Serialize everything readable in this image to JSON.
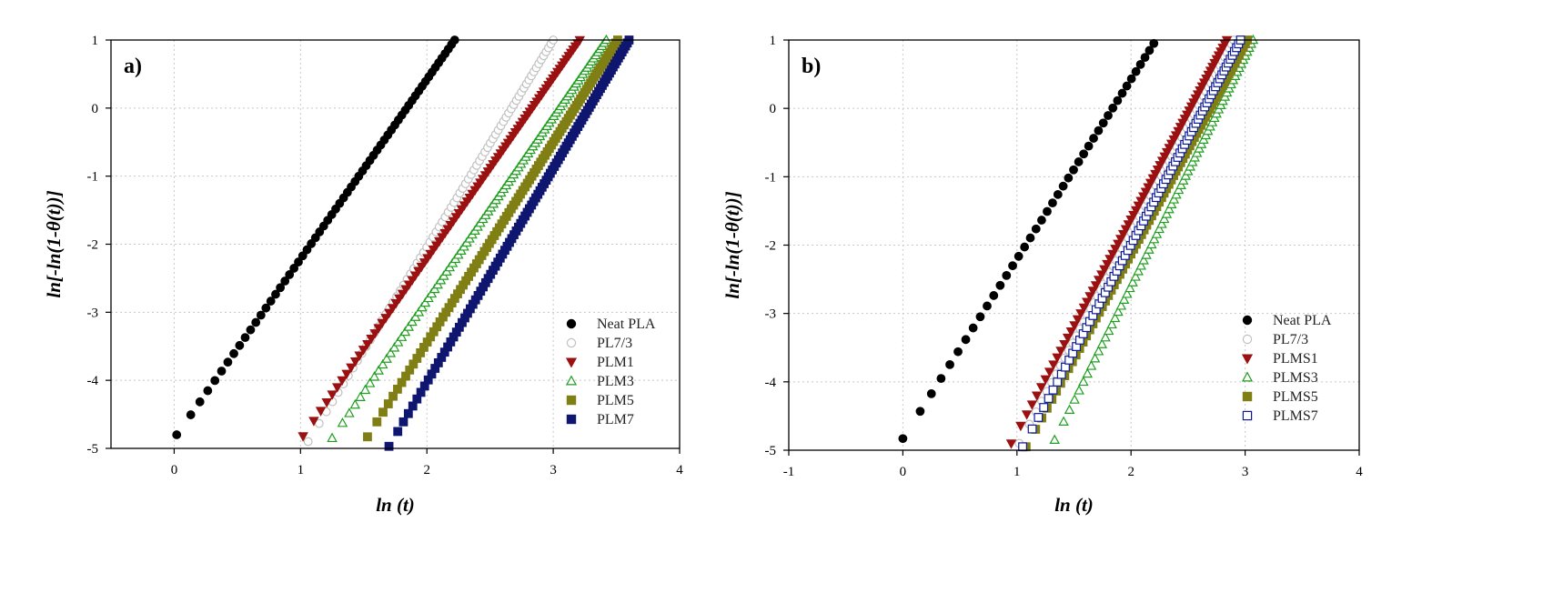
{
  "chart_data": [
    {
      "type": "scatter",
      "panel_label": "a)",
      "xlabel": "ln (t)",
      "ylabel": "ln[-ln(1-θ(t))]",
      "xlim": [
        -0.5,
        4
      ],
      "ylim": [
        -5,
        1
      ],
      "xticks": [
        0,
        1,
        2,
        3,
        4
      ],
      "yticks": [
        -5,
        -4,
        -3,
        -2,
        -1,
        0,
        1
      ],
      "grid": true,
      "legend_position": "bottom-right",
      "series": [
        {
          "name": "Neat PLA",
          "marker": "circle",
          "filled": true,
          "color": "#000000",
          "x_start": 0.02,
          "x_end": 2.22,
          "y_start": -4.8,
          "y_end": 1,
          "count": 64
        },
        {
          "name": "PL7/3",
          "marker": "circle",
          "filled": false,
          "color": "#c0c0c0",
          "x_start": 1.06,
          "x_end": 3.0,
          "y_start": -4.9,
          "y_end": 1,
          "count": 75
        },
        {
          "name": "PLM1",
          "marker": "triangle-down",
          "filled": true,
          "color": "#9b1010",
          "x_start": 1.02,
          "x_end": 3.21,
          "y_start": -4.82,
          "y_end": 1,
          "count": 92
        },
        {
          "name": "PLM3",
          "marker": "triangle-up",
          "filled": false,
          "color": "#1f9e1f",
          "x_start": 1.25,
          "x_end": 3.42,
          "y_start": -4.85,
          "y_end": 1,
          "count": 95
        },
        {
          "name": "PLM5",
          "marker": "square",
          "filled": true,
          "color": "#7f7f14",
          "x_start": 1.53,
          "x_end": 3.51,
          "y_start": -4.83,
          "y_end": 1,
          "count": 96
        },
        {
          "name": "PLM7",
          "marker": "square",
          "filled": true,
          "color": "#0f1670",
          "x_start": 1.7,
          "x_end": 3.6,
          "y_start": -4.97,
          "y_end": 1,
          "count": 100
        }
      ]
    },
    {
      "type": "scatter",
      "panel_label": "b)",
      "xlabel": "ln (t)",
      "ylabel": "ln[-ln(1-θ(t))]",
      "xlim": [
        -1,
        4
      ],
      "ylim": [
        -5,
        1
      ],
      "xticks": [
        -1,
        0,
        1,
        2,
        3,
        4
      ],
      "yticks": [
        -5,
        -4,
        -3,
        -2,
        -1,
        0,
        1
      ],
      "grid": true,
      "legend_position": "bottom-right",
      "series": [
        {
          "name": "Neat PLA",
          "marker": "circle",
          "filled": true,
          "color": "#000000",
          "x_start": 0.0,
          "x_end": 2.2,
          "y_start": -4.83,
          "y_end": 0.95,
          "count": 42
        },
        {
          "name": "PL7/3",
          "marker": "circle",
          "filled": false,
          "color": "#c0c0c0",
          "x_start": 1.02,
          "x_end": 2.9,
          "y_start": -4.9,
          "y_end": 1,
          "count": 70
        },
        {
          "name": "PLMS1",
          "marker": "triangle-down",
          "filled": true,
          "color": "#9b1010",
          "x_start": 0.95,
          "x_end": 2.84,
          "y_start": -4.9,
          "y_end": 1,
          "count": 78
        },
        {
          "name": "PLMS3",
          "marker": "triangle-up",
          "filled": false,
          "color": "#1f9e1f",
          "x_start": 1.33,
          "x_end": 3.07,
          "y_start": -4.85,
          "y_end": 1,
          "count": 74
        },
        {
          "name": "PLMS5",
          "marker": "square",
          "filled": true,
          "color": "#7f7f14",
          "x_start": 1.08,
          "x_end": 3.02,
          "y_start": -4.95,
          "y_end": 1,
          "count": 80
        },
        {
          "name": "PLMS7",
          "marker": "square",
          "filled": false,
          "color": "#0d1a9a",
          "x_start": 1.05,
          "x_end": 2.96,
          "y_start": -4.95,
          "y_end": 1,
          "count": 78
        }
      ]
    }
  ]
}
